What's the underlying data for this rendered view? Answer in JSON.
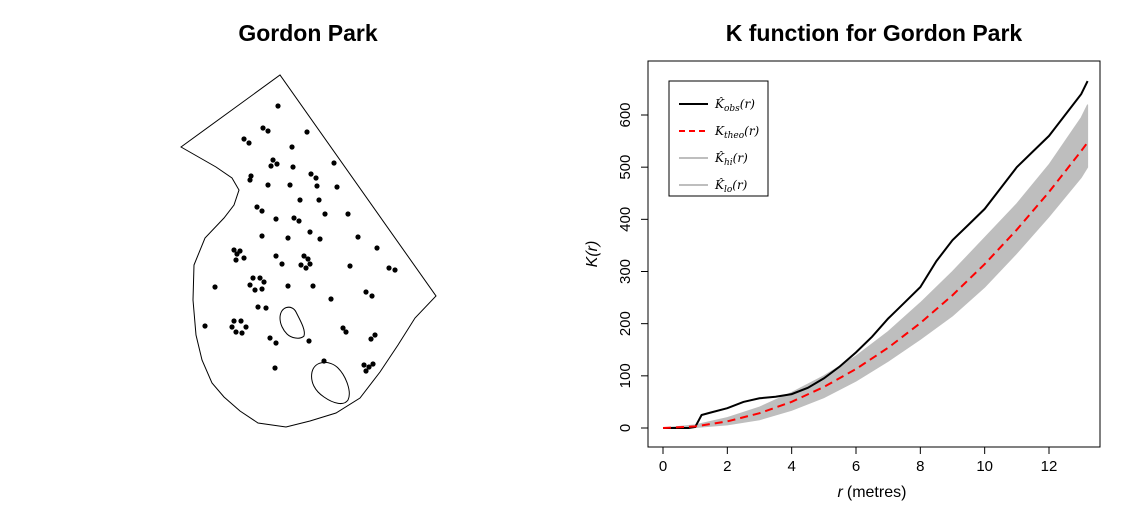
{
  "chart_data": [
    {
      "type": "scatter",
      "title": "Gordon Park",
      "description_points": "point pattern of tree locations inside park boundary with two holes (ponds); clustered rings visible"
    },
    {
      "type": "line",
      "title": "K function for Gordon Park",
      "xlabel_italic": "r",
      "xlabel_unit": "(metres)",
      "ylabel": "K(r)",
      "xlim": [
        0,
        13.3
      ],
      "ylim": [
        0,
        650
      ],
      "xticks": [
        "0",
        "2",
        "4",
        "6",
        "8",
        "10",
        "12"
      ],
      "yticks": [
        "0",
        "100",
        "200",
        "300",
        "400",
        "500",
        "600"
      ],
      "legend_position": "top-left",
      "legend": [
        {
          "name": "K̂obs(r)",
          "base": "K̂",
          "sub": "obs",
          "arg": "(r)",
          "color": "#000000",
          "style": "solid"
        },
        {
          "name": "Ktheo(r)",
          "base": "K",
          "sub": "theo",
          "arg": "(r)",
          "color": "#ff0000",
          "style": "dashed"
        },
        {
          "name": "K̂hi(r)",
          "base": "K̂",
          "sub": "hi",
          "arg": "(r)",
          "color": "#bebebe",
          "style": "solid"
        },
        {
          "name": "K̂lo(r)",
          "base": "K̂",
          "sub": "lo",
          "arg": "(r)",
          "color": "#bebebe",
          "style": "solid"
        }
      ],
      "series": [
        {
          "name": "K̂obs(r)",
          "x": [
            0,
            0.8,
            1.0,
            1.2,
            1.5,
            2,
            2.5,
            3,
            3.5,
            4,
            4.5,
            5,
            5.5,
            6,
            6.5,
            7,
            7.5,
            8,
            8.5,
            9,
            9.5,
            10,
            10.5,
            11,
            11.5,
            12,
            12.5,
            13,
            13.2
          ],
          "y": [
            0,
            0,
            2,
            25,
            30,
            38,
            50,
            57,
            60,
            65,
            77,
            95,
            118,
            145,
            175,
            210,
            240,
            270,
            320,
            360,
            390,
            420,
            460,
            500,
            530,
            560,
            600,
            640,
            665
          ]
        },
        {
          "name": "Ktheo(r)",
          "x": [
            0,
            1,
            2,
            3,
            4,
            5,
            6,
            7,
            8,
            9,
            10,
            11,
            12,
            13,
            13.2
          ],
          "y": [
            0,
            3.1,
            12.6,
            28.3,
            50.3,
            78.5,
            113.1,
            153.9,
            201.1,
            254.5,
            314.2,
            380.1,
            452.4,
            530.9,
            547.4
          ]
        },
        {
          "name": "K̂hi(r)",
          "x": [
            0,
            1,
            2,
            3,
            4,
            5,
            6,
            7,
            8,
            9,
            10,
            11,
            12,
            13,
            13.2
          ],
          "y": [
            0,
            6,
            20,
            40,
            68,
            100,
            138,
            185,
            240,
            300,
            365,
            430,
            505,
            595,
            620
          ]
        },
        {
          "name": "K̂lo(r)",
          "x": [
            0,
            1,
            2,
            3,
            4,
            5,
            6,
            7,
            8,
            9,
            10,
            11,
            12,
            13,
            13.2
          ],
          "y": [
            0,
            1,
            6,
            16,
            34,
            58,
            90,
            128,
            170,
            215,
            270,
            335,
            405,
            480,
            500
          ]
        }
      ]
    }
  ]
}
